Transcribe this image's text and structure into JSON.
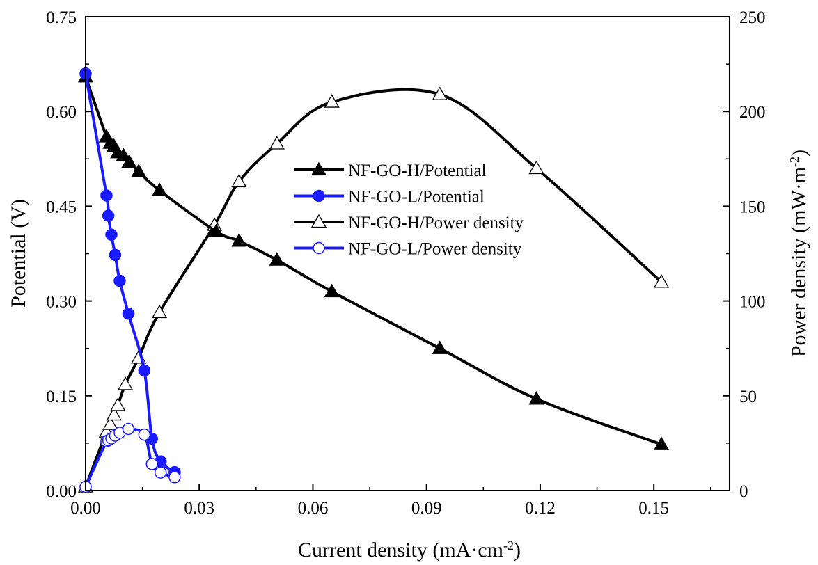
{
  "chart_data": {
    "type": "line",
    "xlabel": "Current density (mA·cm",
    "xlabel_sup": "-2",
    "xlabel_close": ")",
    "ylabel_left": "Potential (V)",
    "ylabel_right": "Power density (mW·m",
    "ylabel_right_sup": "-2",
    "ylabel_right_close": ")",
    "xlim": [
      0,
      0.17
    ],
    "ylim_left": [
      0,
      0.75
    ],
    "ylim_right": [
      0,
      250
    ],
    "x_ticks": [
      "0.00",
      "0.03",
      "0.06",
      "0.09",
      "0.12",
      "0.15"
    ],
    "x_tick_values": [
      0,
      0.03,
      0.06,
      0.09,
      0.12,
      0.15
    ],
    "y_left_ticks": [
      "0.00",
      "0.15",
      "0.30",
      "0.45",
      "0.60",
      "0.75"
    ],
    "y_left_tick_values": [
      0,
      0.15,
      0.3,
      0.45,
      0.6,
      0.75
    ],
    "y_right_ticks": [
      "0",
      "50",
      "100",
      "150",
      "200",
      "250"
    ],
    "y_right_tick_values": [
      0,
      50,
      100,
      150,
      200,
      250
    ],
    "grid": false,
    "legend_position": "center",
    "colors": {
      "black": "#000000",
      "blue": "#1a1aff"
    },
    "series": [
      {
        "name": "NF-GO-H/Potential",
        "axis": "left",
        "color": "#000000",
        "marker": "triangle",
        "filled": true,
        "x": [
          0.0,
          0.0055,
          0.0065,
          0.0075,
          0.0085,
          0.01,
          0.0115,
          0.014,
          0.0195,
          0.0345,
          0.0405,
          0.0505,
          0.065,
          0.0935,
          0.119,
          0.152
        ],
        "y": [
          0.655,
          0.56,
          0.55,
          0.545,
          0.535,
          0.53,
          0.52,
          0.505,
          0.475,
          0.41,
          0.395,
          0.365,
          0.315,
          0.225,
          0.145,
          0.073
        ]
      },
      {
        "name": "NF-GO-L/Potential",
        "axis": "left",
        "color": "#1a1aff",
        "marker": "circle",
        "filled": true,
        "x": [
          0.0,
          0.0055,
          0.006,
          0.0068,
          0.0078,
          0.009,
          0.0113,
          0.0155,
          0.0175,
          0.0198,
          0.0235
        ],
        "y": [
          0.66,
          0.467,
          0.435,
          0.405,
          0.373,
          0.332,
          0.28,
          0.19,
          0.082,
          0.046,
          0.029
        ]
      },
      {
        "name": "NF-GO-H/Power density",
        "axis": "right",
        "color": "#000000",
        "marker": "triangle",
        "filled": false,
        "x": [
          0.0,
          0.0055,
          0.0065,
          0.0075,
          0.0085,
          0.0105,
          0.014,
          0.0195,
          0.034,
          0.0405,
          0.0505,
          0.065,
          0.0935,
          0.119,
          0.152
        ],
        "y": [
          2,
          31,
          35,
          40,
          45,
          56,
          70,
          94,
          140,
          163,
          183,
          205,
          209,
          170,
          110
        ]
      },
      {
        "name": "NF-GO-L/Power density",
        "axis": "right",
        "color": "#1a1aff",
        "marker": "circle",
        "filled": false,
        "x": [
          0.0,
          0.0055,
          0.006,
          0.0068,
          0.0078,
          0.009,
          0.0113,
          0.0155,
          0.0175,
          0.0198,
          0.0235
        ],
        "y": [
          2,
          26,
          26.5,
          27.5,
          29,
          30.5,
          32.5,
          29.5,
          14,
          9.5,
          7
        ]
      }
    ]
  }
}
